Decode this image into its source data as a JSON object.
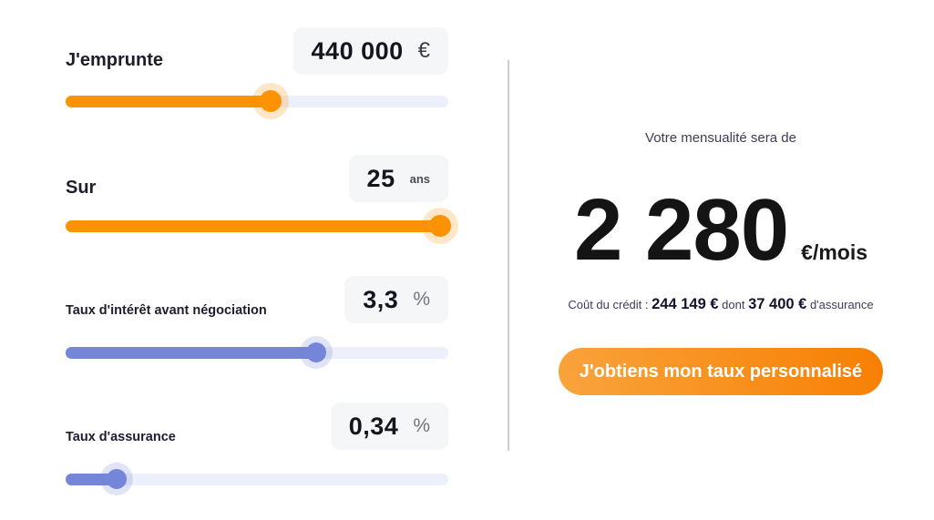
{
  "theme": {
    "accent_orange": "#FB9304",
    "accent_blue": "#7585D8",
    "track_background": "#EDF0FA",
    "value_box_background": "#F5F6F8",
    "cta_gradient_start": "#F9A43D",
    "cta_gradient_end": "#F77F02",
    "divider_color": "#CDCDCD"
  },
  "fields": [
    {
      "label": "J'emprunte",
      "value": "440 000",
      "unit": "€",
      "percent": 53.6
    },
    {
      "label": "Sur",
      "value": "25",
      "unit": "ans",
      "percent": 97.9
    },
    {
      "label": "Taux d'intérêt avant négociation",
      "value": "3,3",
      "unit": "%",
      "percent": 65.5
    },
    {
      "label": "Taux d'assurance",
      "value": "0,34",
      "unit": "%",
      "percent": 13.3
    }
  ],
  "result": {
    "heading": "Votre mensualité sera de",
    "monthly_amount": "2 280",
    "monthly_unit": "€/mois",
    "cost_label": "Coût du crédit :",
    "cost_credit": "244 149 €",
    "cost_conjunction": "dont",
    "cost_insurance": "37 400 €",
    "cost_suffix": "d'assurance",
    "cta_label": "J'obtiens mon taux personnalisé"
  }
}
